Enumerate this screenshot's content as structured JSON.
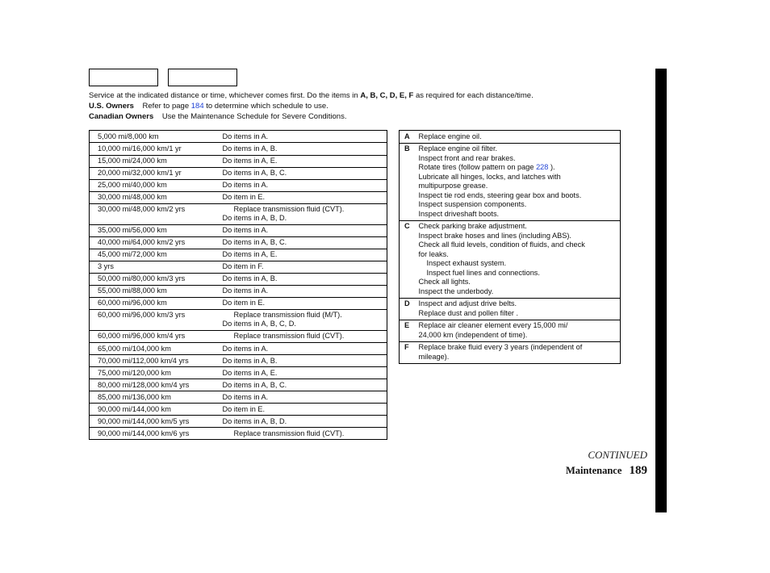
{
  "intro": {
    "line1_pre": "Service at the indicated distance or time, whichever comes first. Do the items in ",
    "line1_bold": "A, B, C, D, E, F",
    "line1_post": " as required for each distance/time.",
    "us_label": "U.S. Owners",
    "us_text_pre": "Refer to page ",
    "us_page": "184",
    "us_text_post": " to determine which schedule to use.",
    "ca_label": "Canadian Owners",
    "ca_text": "Use the Maintenance Schedule for Severe Conditions."
  },
  "schedule": [
    {
      "d": "5,000 mi/8,000 km",
      "a": [
        "Do items in A."
      ]
    },
    {
      "d": "10,000 mi/16,000 km/1 yr",
      "a": [
        "Do items in A, B."
      ]
    },
    {
      "d": "15,000 mi/24,000 km",
      "a": [
        "Do items in A, E."
      ]
    },
    {
      "d": "20,000 mi/32,000 km/1 yr",
      "a": [
        "Do items in A, B, C."
      ]
    },
    {
      "d": "25,000 mi/40,000 km",
      "a": [
        "Do items in A."
      ]
    },
    {
      "d": "30,000 mi/48,000 km",
      "a": [
        "Do item in E."
      ]
    },
    {
      "d": "30,000 mi/48,000 km/2 yrs",
      "a": [
        "   Replace transmission fluid (CVT).",
        "Do items in A, B, D."
      ]
    },
    {
      "d": "35,000 mi/56,000 km",
      "a": [
        "Do items in A."
      ]
    },
    {
      "d": "40,000 mi/64,000 km/2 yrs",
      "a": [
        "Do items in A, B, C."
      ]
    },
    {
      "d": "45,000 mi/72,000 km",
      "a": [
        "Do items in A, E."
      ]
    },
    {
      "d": "3 yrs",
      "a": [
        "Do item in F."
      ]
    },
    {
      "d": "50,000 mi/80,000 km/3 yrs",
      "a": [
        "Do items in A, B."
      ]
    },
    {
      "d": "55,000 mi/88,000 km",
      "a": [
        "Do items in A."
      ]
    },
    {
      "d": "60,000 mi/96,000 km",
      "a": [
        "Do item in E."
      ]
    },
    {
      "d": "60,000 mi/96,000 km/3 yrs",
      "a": [
        "   Replace transmission fluid (M/T).",
        "Do items in A, B, C, D."
      ]
    },
    {
      "d": "60,000 mi/96,000 km/4 yrs",
      "a": [
        "   Replace transmission fluid (CVT)."
      ]
    },
    {
      "d": "65,000 mi/104,000 km",
      "a": [
        "Do items in A."
      ]
    },
    {
      "d": "70,000 mi/112,000 km/4 yrs",
      "a": [
        "Do items in A, B."
      ]
    },
    {
      "d": "75,000 mi/120,000 km",
      "a": [
        "Do items in A, E."
      ]
    },
    {
      "d": "80,000 mi/128,000 km/4 yrs",
      "a": [
        "Do items in A, B, C."
      ]
    },
    {
      "d": "85,000 mi/136,000 km",
      "a": [
        "Do items in A."
      ]
    },
    {
      "d": "90,000 mi/144,000 km",
      "a": [
        "Do item in E."
      ]
    },
    {
      "d": "90,000 mi/144,000 km/5 yrs",
      "a": [
        "Do items in A, B, D."
      ]
    },
    {
      "d": "90,000 mi/144,000 km/6 yrs",
      "a": [
        "   Replace transmission fluid (CVT)."
      ]
    }
  ],
  "key": [
    {
      "c": "A",
      "lines": [
        "Replace engine oil."
      ]
    },
    {
      "c": "B",
      "lines": [
        "Replace engine oil filter.",
        "Inspect front and rear brakes.",
        "Rotate tires (follow pattern on page 228 ).",
        "Lubricate all hinges, locks, and latches with",
        "multipurpose grease.",
        "Inspect tie rod ends, steering gear box and boots.",
        "Inspect suspension components.",
        "Inspect driveshaft boots."
      ]
    },
    {
      "c": "C",
      "lines": [
        "Check parking brake adjustment.",
        "Inspect brake hoses and lines (including ABS).",
        "Check all fluid levels, condition of fluids, and check",
        "for leaks.",
        "  Inspect exhaust system.",
        "  Inspect fuel lines and connections.",
        "Check all lights.",
        "Inspect the underbody."
      ]
    },
    {
      "c": "D",
      "lines": [
        "Inspect and adjust drive belts.",
        "Replace dust and pollen filter  ."
      ]
    },
    {
      "c": "E",
      "lines": [
        "Replace air cleaner element every 15,000 mi/",
        "24,000 km (independent of time)."
      ]
    },
    {
      "c": "F",
      "lines": [
        "Replace brake fluid every 3 years (independent of",
        "mileage)."
      ]
    }
  ],
  "footer": {
    "continued": "CONTINUED",
    "section": "Maintenance",
    "page": "189"
  },
  "colors": {
    "link": "#2345d6"
  }
}
